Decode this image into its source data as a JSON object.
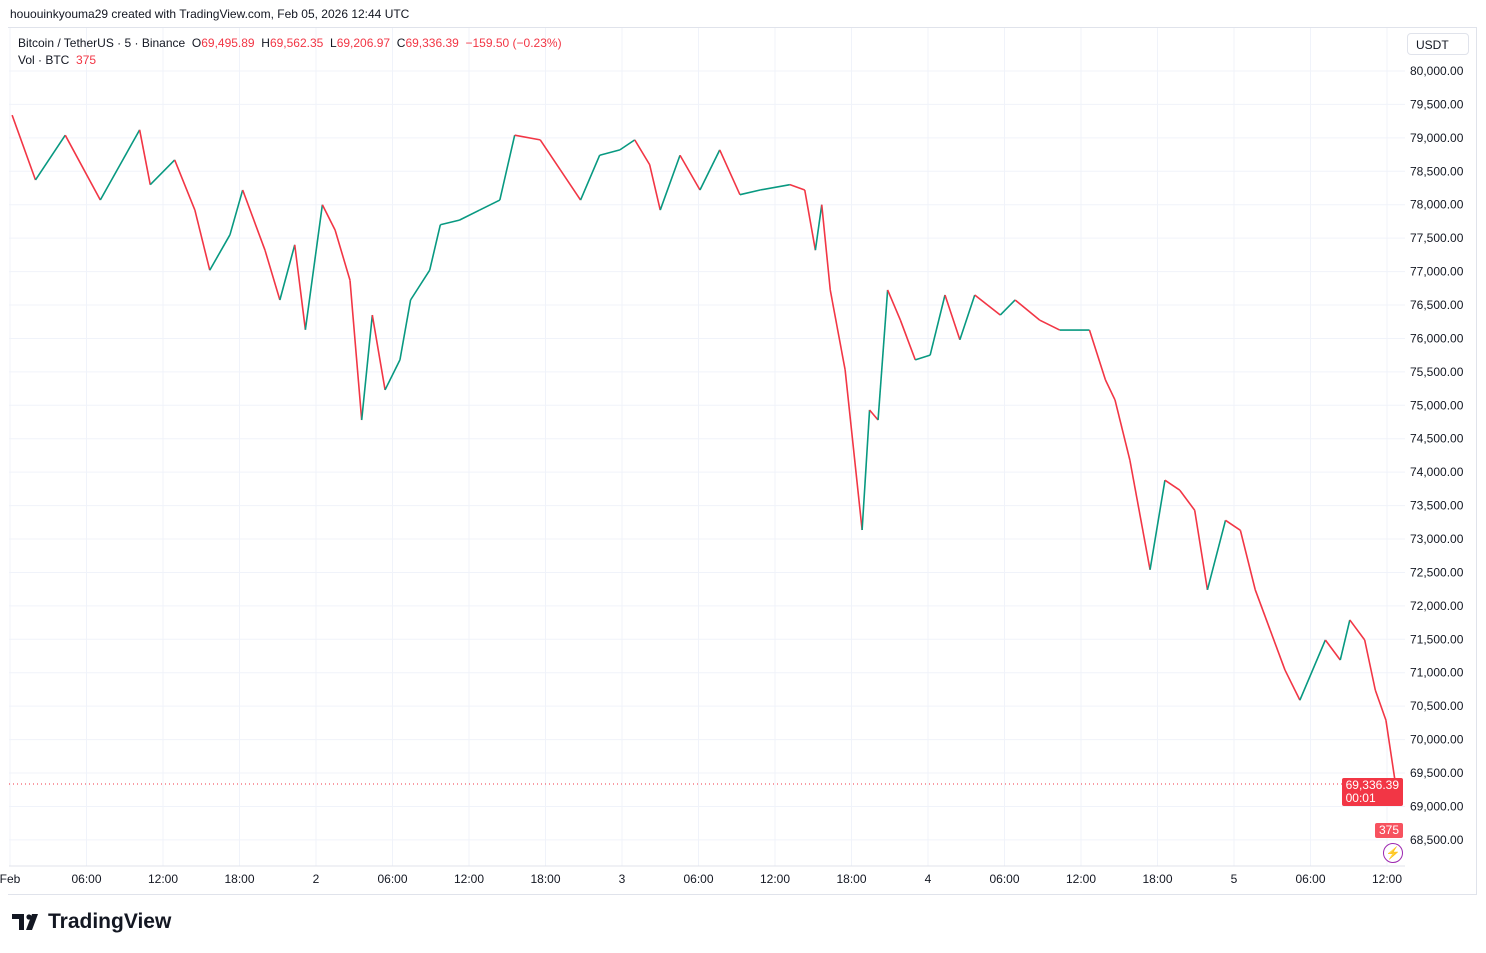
{
  "credit": "hououinkyouma29 created with TradingView.com, Feb 05, 2026 12:44 UTC",
  "legend": {
    "symbol": "Bitcoin / TetherUS · 5 · Binance",
    "o_label": "O",
    "o": "69,495.89",
    "h_label": "H",
    "h": "69,562.35",
    "l_label": "L",
    "l": "69,206.97",
    "c_label": "C",
    "c": "69,336.39",
    "change": "−159.50 (−0.23%)",
    "vol_label": "Vol · BTC",
    "vol": "375"
  },
  "price_axis": {
    "unit": "USDT",
    "last_price": "69,336.39",
    "countdown": "00:01",
    "volume_tag": "375"
  },
  "brand": "TradingView",
  "colors": {
    "up": "#089981",
    "down": "#f23645",
    "grid": "#f0f3fa",
    "last_price": "#f23645",
    "alert": "#9c27b0"
  },
  "icons": {
    "alert": "lightning-icon"
  },
  "chart_data": {
    "type": "candlestick",
    "title": "Bitcoin / TetherUS · 5 · Binance",
    "ylim": [
      68500,
      80000
    ],
    "yticks": [
      "80,000.00",
      "79,500.00",
      "79,000.00",
      "78,500.00",
      "78,000.00",
      "77,500.00",
      "77,000.00",
      "76,500.00",
      "76,000.00",
      "75,500.00",
      "75,000.00",
      "74,500.00",
      "74,000.00",
      "73,500.00",
      "73,000.00",
      "72,500.00",
      "72,000.00",
      "71,500.00",
      "71,000.00",
      "70,500.00",
      "70,000.00",
      "69,500.00",
      "69,000.00",
      "68,500.00"
    ],
    "xlim": [
      "02-01 00:00",
      "02-05 13:45"
    ],
    "xticks": [
      {
        "t": "02-01 00:00",
        "label": "Feb"
      },
      {
        "t": "02-01 06:00",
        "label": "06:00"
      },
      {
        "t": "02-01 12:00",
        "label": "12:00"
      },
      {
        "t": "02-01 18:00",
        "label": "18:00"
      },
      {
        "t": "02-02 00:00",
        "label": "2"
      },
      {
        "t": "02-02 06:00",
        "label": "06:00"
      },
      {
        "t": "02-02 12:00",
        "label": "12:00"
      },
      {
        "t": "02-02 18:00",
        "label": "18:00"
      },
      {
        "t": "02-03 00:00",
        "label": "3"
      },
      {
        "t": "02-03 06:00",
        "label": "06:00"
      },
      {
        "t": "02-03 12:00",
        "label": "12:00"
      },
      {
        "t": "02-03 18:00",
        "label": "18:00"
      },
      {
        "t": "02-04 00:00",
        "label": "4"
      },
      {
        "t": "02-04 06:00",
        "label": "06:00"
      },
      {
        "t": "02-04 12:00",
        "label": "12:00"
      },
      {
        "t": "02-04 18:00",
        "label": "18:00"
      },
      {
        "t": "02-05 00:00",
        "label": "5"
      },
      {
        "t": "02-05 06:00",
        "label": "06:00"
      },
      {
        "t": "02-05 12:00",
        "label": "12:00"
      }
    ],
    "closes": [
      [
        "02-01 00:10",
        79340
      ],
      [
        "02-01 02:00",
        78370
      ],
      [
        "02-01 04:20",
        79040
      ],
      [
        "02-01 07:05",
        78070
      ],
      [
        "02-01 10:10",
        79120
      ],
      [
        "02-01 11:00",
        78300
      ],
      [
        "02-01 12:55",
        78670
      ],
      [
        "02-01 14:30",
        77920
      ],
      [
        "02-01 15:40",
        77020
      ],
      [
        "02-01 17:15",
        77550
      ],
      [
        "02-01 18:15",
        78220
      ],
      [
        "02-01 20:00",
        77320
      ],
      [
        "02-01 21:10",
        76575
      ],
      [
        "02-01 22:20",
        77400
      ],
      [
        "02-01 23:10",
        76130
      ],
      [
        "02-02 00:30",
        78000
      ],
      [
        "02-02 01:30",
        77620
      ],
      [
        "02-02 02:40",
        76870
      ],
      [
        "02-02 03:35",
        74780
      ],
      [
        "02-02 04:25",
        76350
      ],
      [
        "02-02 05:25",
        75230
      ],
      [
        "02-02 06:35",
        75680
      ],
      [
        "02-02 07:25",
        76575
      ],
      [
        "02-02 08:55",
        77020
      ],
      [
        "02-02 09:45",
        77700
      ],
      [
        "02-02 11:15",
        77770
      ],
      [
        "02-02 12:50",
        77920
      ],
      [
        "02-02 14:25",
        78070
      ],
      [
        "02-02 15:35",
        79040
      ],
      [
        "02-02 17:35",
        78970
      ],
      [
        "02-02 19:10",
        78520
      ],
      [
        "02-02 20:45",
        78070
      ],
      [
        "02-02 22:15",
        78740
      ],
      [
        "02-02 23:50",
        78820
      ],
      [
        "02-03 01:00",
        78970
      ],
      [
        "02-03 02:10",
        78600
      ],
      [
        "02-03 03:00",
        77920
      ],
      [
        "02-03 04:33",
        78740
      ],
      [
        "02-03 06:07",
        78220
      ],
      [
        "02-03 07:40",
        78820
      ],
      [
        "02-03 09:15",
        78150
      ],
      [
        "02-03 10:50",
        78220
      ],
      [
        "02-03 13:10",
        78300
      ],
      [
        "02-03 14:20",
        78220
      ],
      [
        "02-03 15:10",
        77320
      ],
      [
        "02-03 15:40",
        78000
      ],
      [
        "02-03 16:20",
        76725
      ],
      [
        "02-03 17:30",
        75530
      ],
      [
        "02-03 18:50",
        73135
      ],
      [
        "02-03 19:25",
        74930
      ],
      [
        "02-03 20:05",
        74780
      ],
      [
        "02-03 20:50",
        76725
      ],
      [
        "02-03 21:50",
        76275
      ],
      [
        "02-03 23:00",
        75680
      ],
      [
        "02-04 00:10",
        75750
      ],
      [
        "02-04 01:20",
        76650
      ],
      [
        "02-04 02:30",
        75980
      ],
      [
        "02-04 03:40",
        76650
      ],
      [
        "02-04 05:40",
        76350
      ],
      [
        "02-04 06:50",
        76575
      ],
      [
        "02-04 08:45",
        76275
      ],
      [
        "02-04 10:20",
        76125
      ],
      [
        "02-04 12:40",
        76125
      ],
      [
        "02-04 13:55",
        75380
      ],
      [
        "02-04 14:40",
        75080
      ],
      [
        "02-04 15:50",
        74180
      ],
      [
        "02-04 17:25",
        72540
      ],
      [
        "02-04 18:35",
        73880
      ],
      [
        "02-04 19:45",
        73730
      ],
      [
        "02-04 20:55",
        73430
      ],
      [
        "02-04 21:55",
        72240
      ],
      [
        "02-04 23:20",
        73280
      ],
      [
        "02-05 00:30",
        73130
      ],
      [
        "02-05 01:40",
        72240
      ],
      [
        "02-05 02:50",
        71640
      ],
      [
        "02-05 04:00",
        71040
      ],
      [
        "02-05 05:10",
        70590
      ],
      [
        "02-05 07:10",
        71490
      ],
      [
        "02-05 08:20",
        71190
      ],
      [
        "02-05 09:05",
        71790
      ],
      [
        "02-05 10:15",
        71490
      ],
      [
        "02-05 11:05",
        70740
      ],
      [
        "02-05 11:55",
        70290
      ],
      [
        "02-05 12:40",
        69336
      ]
    ],
    "last_price": 69336.39
  }
}
